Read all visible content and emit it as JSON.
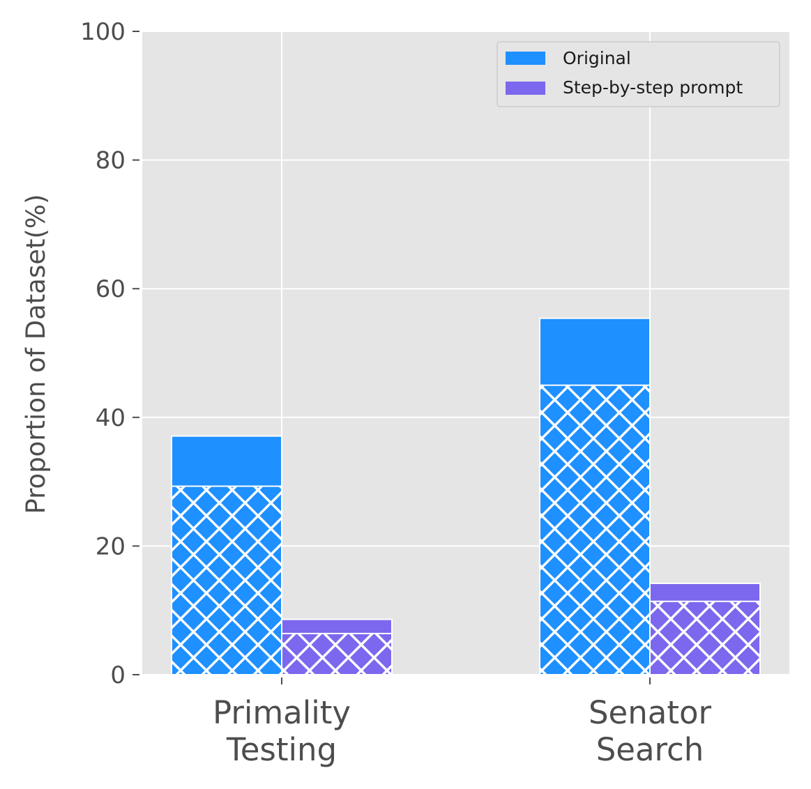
{
  "chart_data": {
    "type": "bar",
    "categories": [
      "Primality\nTesting",
      "Senator\nSearch"
    ],
    "series": [
      {
        "name": "Original",
        "color": "#1e90ff",
        "values": [
          37.1,
          55.4
        ],
        "hatched_portion": [
          29.3,
          45.0
        ]
      },
      {
        "name": "Step-by-step prompt",
        "color": "#7b68ee",
        "values": [
          8.6,
          14.2
        ],
        "hatched_portion": [
          6.4,
          11.4
        ]
      }
    ],
    "ylabel": "Proportion of Dataset(%)",
    "xlabel": "",
    "ylim": [
      0,
      100
    ],
    "yticks": [
      "0",
      "20",
      "40",
      "60",
      "80",
      "100"
    ],
    "grid": true,
    "legend_position": "top-right",
    "background": "#e5e5e5"
  }
}
